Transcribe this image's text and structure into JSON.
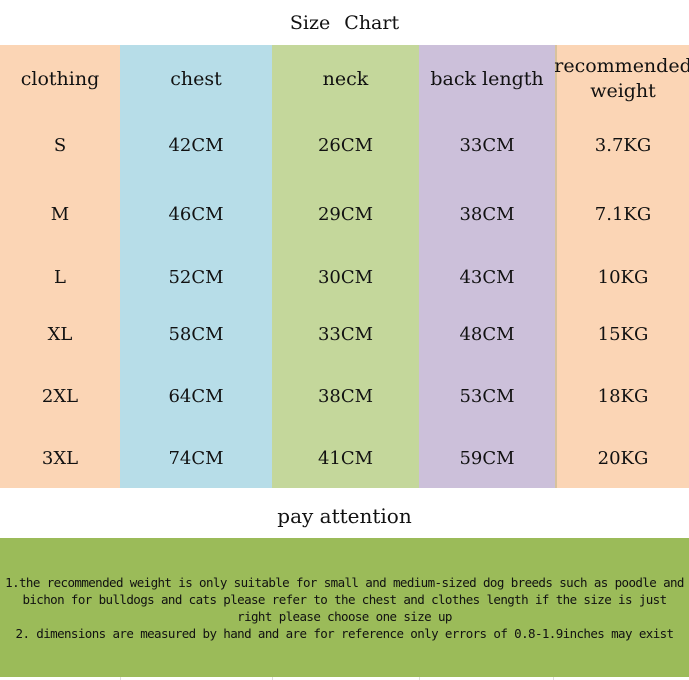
{
  "title": "Size  Chart",
  "colors": {
    "peach": "#fbd5b5",
    "blue": "#b7dde8",
    "green": "#c4d79b",
    "purple": "#ccc0da",
    "note_bg": "#9bbb59"
  },
  "headers": [
    "clothing",
    "chest",
    "neck",
    "back length",
    "recommended weight"
  ],
  "rows": [
    [
      "S",
      "42CM",
      "26CM",
      "33CM",
      "3.7KG"
    ],
    [
      "M",
      "46CM",
      "29CM",
      "38CM",
      "7.1KG"
    ],
    [
      "L",
      "52CM",
      "30CM",
      "43CM",
      "10KG"
    ],
    [
      "XL",
      "58CM",
      "33CM",
      "48CM",
      "15KG"
    ],
    [
      "2XL",
      "64CM",
      "38CM",
      "53CM",
      "18KG"
    ],
    [
      "3XL",
      "74CM",
      "41CM",
      "59CM",
      "20KG"
    ]
  ],
  "attention_title": "pay attention",
  "notes": [
    "1.the recommended weight is only suitable for small and medium-sized dog breeds such as poodle and bichon for bulldogs and cats please refer to the chest and clothes length if the size is just right please choose one size up",
    "2. dimensions are measured by hand and are for reference only errors of 0.8-1.9inches may exist"
  ]
}
